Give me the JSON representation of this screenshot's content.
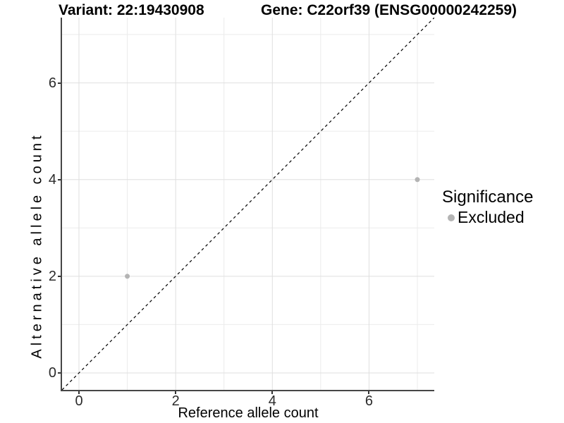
{
  "chart_data": {
    "type": "scatter",
    "title_left": "Variant: 22:19430908",
    "title_right": "Gene: C22orf39 (ENSG00000242259)",
    "xlabel": "Reference allele count",
    "ylabel": "Alternative allele count",
    "xlim": [
      -0.35,
      7.35
    ],
    "ylim": [
      -0.35,
      7.35
    ],
    "x_ticks": [
      0,
      2,
      4,
      6
    ],
    "y_ticks": [
      0,
      2,
      4,
      6
    ],
    "x_minor": [
      1,
      3,
      5,
      7
    ],
    "y_minor": [
      1,
      3,
      5,
      7
    ],
    "grid": "major and minor gridlines, white panel background",
    "identity_line": {
      "style": "dashed",
      "color": "#000000",
      "from": [
        -0.35,
        -0.35
      ],
      "to": [
        7.35,
        7.35
      ]
    },
    "series": [
      {
        "name": "Excluded",
        "color": "#b4b4b4",
        "marker": "circle",
        "points": [
          [
            1,
            2
          ],
          [
            7,
            4
          ]
        ]
      }
    ],
    "legend": {
      "title": "Significance",
      "position": "right",
      "entries": [
        {
          "label": "Excluded",
          "color": "#b4b4b4"
        }
      ]
    }
  },
  "colors": {
    "background": "#ffffff",
    "axis_line": "#464646",
    "tick_mark": "#333333",
    "tick_label": "#2b2b2b",
    "grid_major": "#dfdfdf",
    "grid_minor": "#ebebeb",
    "point": "#b4b4b4",
    "text": "#000000"
  }
}
